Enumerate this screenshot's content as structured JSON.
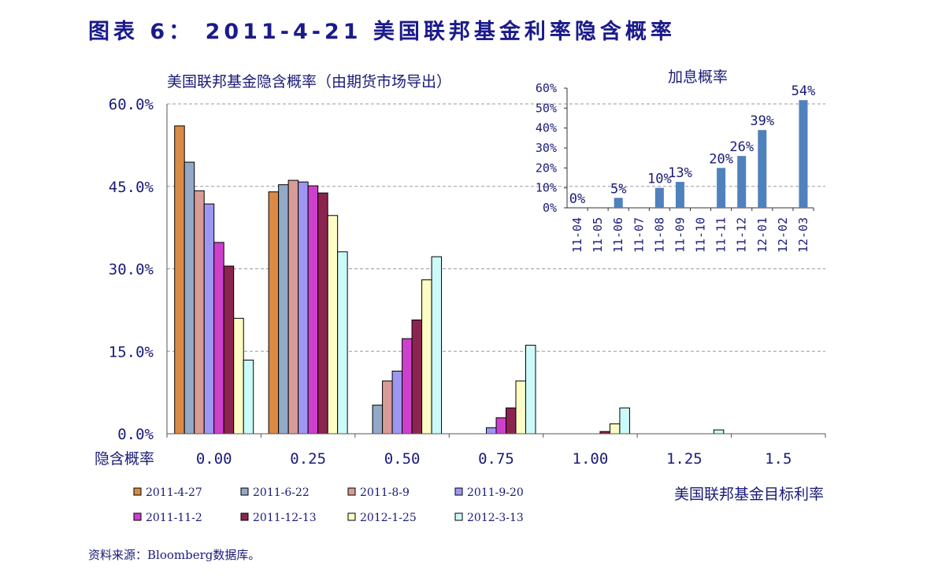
{
  "figure_title": "图表 6： 2011-4-21 美国联邦基金利率隐含概率",
  "source_note": "资料来源：Bloomberg数据库。",
  "colors": {
    "text": "#1a1a7a",
    "gridline": "#9a9a9a",
    "inset_bar": "#4f81bd"
  },
  "chart_data": [
    {
      "type": "bar",
      "title": "美国联邦基金隐含概率（由期货市场导出）",
      "xlabel": "美国联邦基金目标利率",
      "ylabel": "隐含概率",
      "categories": [
        "0.00",
        "0.25",
        "0.50",
        "0.75",
        "1.00",
        "1.25",
        "1.5"
      ],
      "yticks": [
        "0.0%",
        "15.0%",
        "30.0%",
        "45.0%",
        "60.0%"
      ],
      "ylim": [
        0,
        60
      ],
      "grid": true,
      "legend_position": "bottom",
      "series": [
        {
          "name": "2011-4-27",
          "color": "#d98a45",
          "values": [
            56.0,
            44.0,
            0,
            0,
            0,
            0,
            0
          ]
        },
        {
          "name": "2011-6-22",
          "color": "#93a9c8",
          "values": [
            49.4,
            45.3,
            5.2,
            0,
            0,
            0,
            0
          ]
        },
        {
          "name": "2011-8-9",
          "color": "#d99b96",
          "values": [
            44.2,
            46.1,
            9.6,
            0,
            0,
            0,
            0
          ]
        },
        {
          "name": "2011-9-20",
          "color": "#9e97f2",
          "values": [
            41.8,
            45.8,
            11.4,
            1.1,
            0,
            0,
            0
          ]
        },
        {
          "name": "2011-11-2",
          "color": "#cc40cc",
          "values": [
            34.8,
            45.1,
            17.3,
            2.9,
            0,
            0,
            0
          ]
        },
        {
          "name": "2011-12-13",
          "color": "#8b2550",
          "values": [
            30.5,
            43.8,
            20.7,
            4.7,
            0.4,
            0,
            0
          ]
        },
        {
          "name": "2012-1-25",
          "color": "#fcfcc4",
          "values": [
            21.0,
            39.7,
            28.0,
            9.6,
            1.8,
            0,
            0
          ]
        },
        {
          "name": "2012-3-13",
          "color": "#ccfafa",
          "values": [
            13.4,
            33.1,
            32.2,
            16.1,
            4.7,
            0.7,
            0
          ]
        }
      ]
    },
    {
      "type": "bar",
      "title": "加息概率",
      "categories": [
        "11-04",
        "11-05",
        "11-06",
        "11-07",
        "11-08",
        "11-09",
        "11-10",
        "11-11",
        "11-12",
        "12-01",
        "12-02",
        "12-03"
      ],
      "values": [
        0,
        null,
        5,
        null,
        10,
        13,
        null,
        20,
        26,
        39,
        null,
        54
      ],
      "data_labels": [
        "0%",
        "",
        "5%",
        "",
        "10%",
        "13%",
        "",
        "20%",
        "26%",
        "39%",
        "",
        "54%"
      ],
      "yticks": [
        "0%",
        "10%",
        "20%",
        "30%",
        "40%",
        "50%",
        "60%"
      ],
      "ylim": [
        0,
        60
      ],
      "color": "#4f81bd"
    }
  ]
}
